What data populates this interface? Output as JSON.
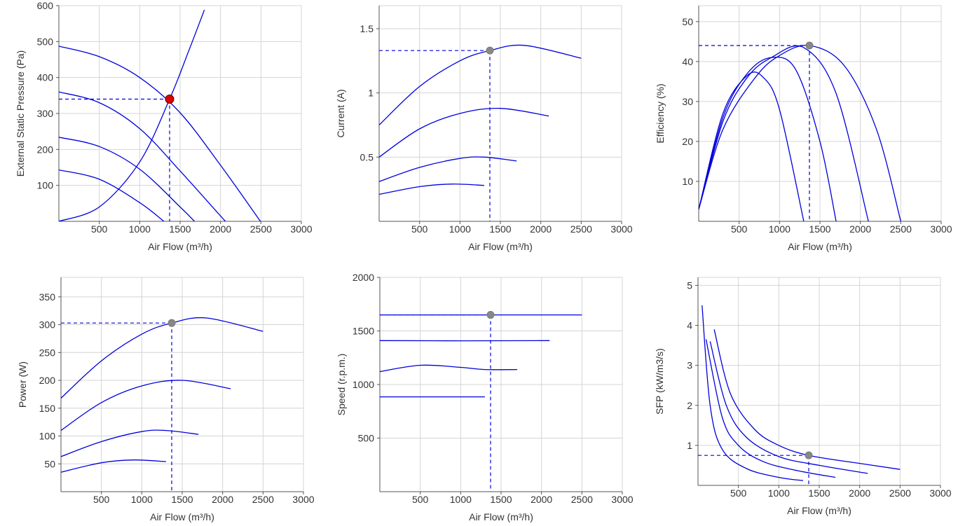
{
  "colors": {
    "curve": "#0000dd",
    "ref": "#0000dd",
    "grid": "#d4d4d4",
    "axis": "#555555",
    "op_point_pressure": "#dd0000",
    "op_point": "#888888"
  },
  "chart_data": [
    {
      "type": "line",
      "xlabel": "Air Flow (m³/h)",
      "ylabel": "External Static Pressure (Pa)",
      "xlim": [
        0,
        3000
      ],
      "ylim": [
        0,
        600
      ],
      "xticks": [
        500,
        1000,
        1500,
        2000,
        2500,
        3000
      ],
      "yticks": [
        100,
        200,
        300,
        400,
        500,
        600
      ],
      "series": [
        {
          "x": [
            0,
            500,
            1000,
            1500,
            2000,
            2500
          ],
          "y": [
            487,
            458,
            400,
            302,
            156,
            -2
          ]
        },
        {
          "x": [
            0,
            500,
            1000,
            1500,
            2000,
            2100
          ],
          "y": [
            360,
            330,
            258,
            140,
            15,
            -10
          ]
        },
        {
          "x": [
            0,
            500,
            1000,
            1500,
            1700
          ],
          "y": [
            234,
            208,
            145,
            40,
            -5
          ]
        },
        {
          "x": [
            0,
            500,
            1000,
            1300
          ],
          "y": [
            143,
            117,
            52,
            0
          ]
        },
        {
          "x": [
            0,
            500,
            1000,
            1370,
            1600,
            1800
          ],
          "y": [
            0,
            40,
            165,
            340,
            470,
            588
          ],
          "type": "system"
        }
      ],
      "operating_point": {
        "x": 1370,
        "y": 340,
        "color": "red"
      }
    },
    {
      "type": "line",
      "xlabel": "Air Flow (m³/h)",
      "ylabel": "Current (A)",
      "xlim": [
        0,
        3000
      ],
      "ylim": [
        0,
        1.68
      ],
      "xticks": [
        500,
        1000,
        1500,
        2000,
        2500,
        3000
      ],
      "yticks": [
        0.5,
        1,
        1.5
      ],
      "series": [
        {
          "x": [
            0,
            500,
            1000,
            1370,
            1800,
            2500
          ],
          "y": [
            0.75,
            1.05,
            1.25,
            1.33,
            1.37,
            1.27
          ]
        },
        {
          "x": [
            0,
            500,
            1000,
            1500,
            2100
          ],
          "y": [
            0.5,
            0.72,
            0.84,
            0.88,
            0.82
          ]
        },
        {
          "x": [
            0,
            500,
            1000,
            1300,
            1700
          ],
          "y": [
            0.31,
            0.42,
            0.49,
            0.5,
            0.47
          ]
        },
        {
          "x": [
            0,
            500,
            900,
            1300
          ],
          "y": [
            0.21,
            0.27,
            0.29,
            0.28
          ]
        }
      ],
      "operating_point": {
        "x": 1370,
        "y": 1.33,
        "color": "gray"
      }
    },
    {
      "type": "line",
      "xlabel": "Air Flow (m³/h)",
      "ylabel": "Efficiency (%)",
      "xlim": [
        0,
        3000
      ],
      "ylim": [
        0,
        54
      ],
      "xticks": [
        500,
        1000,
        1500,
        2000,
        2500,
        3000
      ],
      "yticks": [
        10,
        20,
        30,
        40,
        50
      ],
      "series": [
        {
          "x": [
            0,
            300,
            700,
            1000,
            1370,
            1800,
            2200,
            2500
          ],
          "y": [
            3,
            23,
            36,
            41.5,
            44,
            39,
            23,
            0
          ]
        },
        {
          "x": [
            0,
            300,
            600,
            900,
            1300,
            1700,
            2100
          ],
          "y": [
            3,
            25,
            36,
            41,
            43.5,
            32,
            0
          ]
        },
        {
          "x": [
            0,
            300,
            600,
            900,
            1200,
            1500,
            1700
          ],
          "y": [
            3,
            26,
            37,
            41,
            38,
            20,
            0
          ]
        },
        {
          "x": [
            0,
            300,
            600,
            800,
            1000,
            1300
          ],
          "y": [
            3,
            27,
            36.5,
            36,
            28,
            0
          ]
        }
      ],
      "operating_point": {
        "x": 1370,
        "y": 44,
        "color": "gray"
      }
    },
    {
      "type": "line",
      "xlabel": "Air Flow (m³/h)",
      "ylabel": "Power (W)",
      "xlim": [
        0,
        3000
      ],
      "ylim": [
        0,
        385
      ],
      "xticks": [
        500,
        1000,
        1500,
        2000,
        2500,
        3000
      ],
      "yticks": [
        50,
        100,
        150,
        200,
        250,
        300,
        350
      ],
      "series": [
        {
          "x": [
            0,
            500,
            1000,
            1370,
            1800,
            2500
          ],
          "y": [
            168,
            235,
            283,
            303,
            312,
            288
          ]
        },
        {
          "x": [
            0,
            500,
            1000,
            1500,
            2100
          ],
          "y": [
            110,
            160,
            190,
            200,
            185
          ]
        },
        {
          "x": [
            0,
            500,
            1000,
            1300,
            1700
          ],
          "y": [
            63,
            90,
            108,
            110,
            103
          ]
        },
        {
          "x": [
            0,
            500,
            900,
            1300
          ],
          "y": [
            35,
            52,
            57,
            54
          ]
        }
      ],
      "operating_point": {
        "x": 1370,
        "y": 303,
        "color": "gray"
      }
    },
    {
      "type": "line",
      "xlabel": "Air Flow (m³/h)",
      "ylabel": "Speed (r.p.m.)",
      "xlim": [
        0,
        3000
      ],
      "ylim": [
        0,
        2000
      ],
      "xticks": [
        500,
        1000,
        1500,
        2000,
        2500,
        3000
      ],
      "yticks": [
        500,
        1000,
        1500,
        2000
      ],
      "series": [
        {
          "x": [
            0,
            1370,
            2500
          ],
          "y": [
            1650,
            1650,
            1650
          ]
        },
        {
          "x": [
            0,
            1000,
            2100
          ],
          "y": [
            1410,
            1408,
            1410
          ]
        },
        {
          "x": [
            0,
            500,
            1000,
            1300,
            1700
          ],
          "y": [
            1120,
            1180,
            1160,
            1140,
            1140
          ]
        },
        {
          "x": [
            0,
            1300
          ],
          "y": [
            885,
            885
          ]
        }
      ],
      "operating_point": {
        "x": 1370,
        "y": 1650,
        "color": "gray"
      }
    },
    {
      "type": "line",
      "xlabel": "Air Flow (m³/h)",
      "ylabel": "SFP (kW/m3/s)",
      "xlim": [
        0,
        3000
      ],
      "ylim": [
        0,
        5.2
      ],
      "xticks": [
        500,
        1000,
        1500,
        2000,
        2500,
        3000
      ],
      "yticks": [
        1,
        2,
        3,
        4,
        5
      ],
      "series": [
        {
          "x": [
            200,
            400,
            700,
            1000,
            1370,
            2000,
            2500
          ],
          "y": [
            3.9,
            2.3,
            1.4,
            1.0,
            0.75,
            0.55,
            0.4
          ]
        },
        {
          "x": [
            150,
            350,
            600,
            1000,
            1500,
            2100
          ],
          "y": [
            3.6,
            2.0,
            1.2,
            0.72,
            0.5,
            0.3
          ]
        },
        {
          "x": [
            100,
            300,
            500,
            800,
            1200,
            1700
          ],
          "y": [
            3.65,
            1.7,
            1.0,
            0.6,
            0.38,
            0.2
          ]
        },
        {
          "x": [
            50,
            150,
            300,
            600,
            1000,
            1300
          ],
          "y": [
            4.5,
            2.0,
            0.9,
            0.42,
            0.2,
            0.12
          ]
        }
      ],
      "operating_point": {
        "x": 1370,
        "y": 0.75,
        "color": "gray"
      }
    }
  ]
}
